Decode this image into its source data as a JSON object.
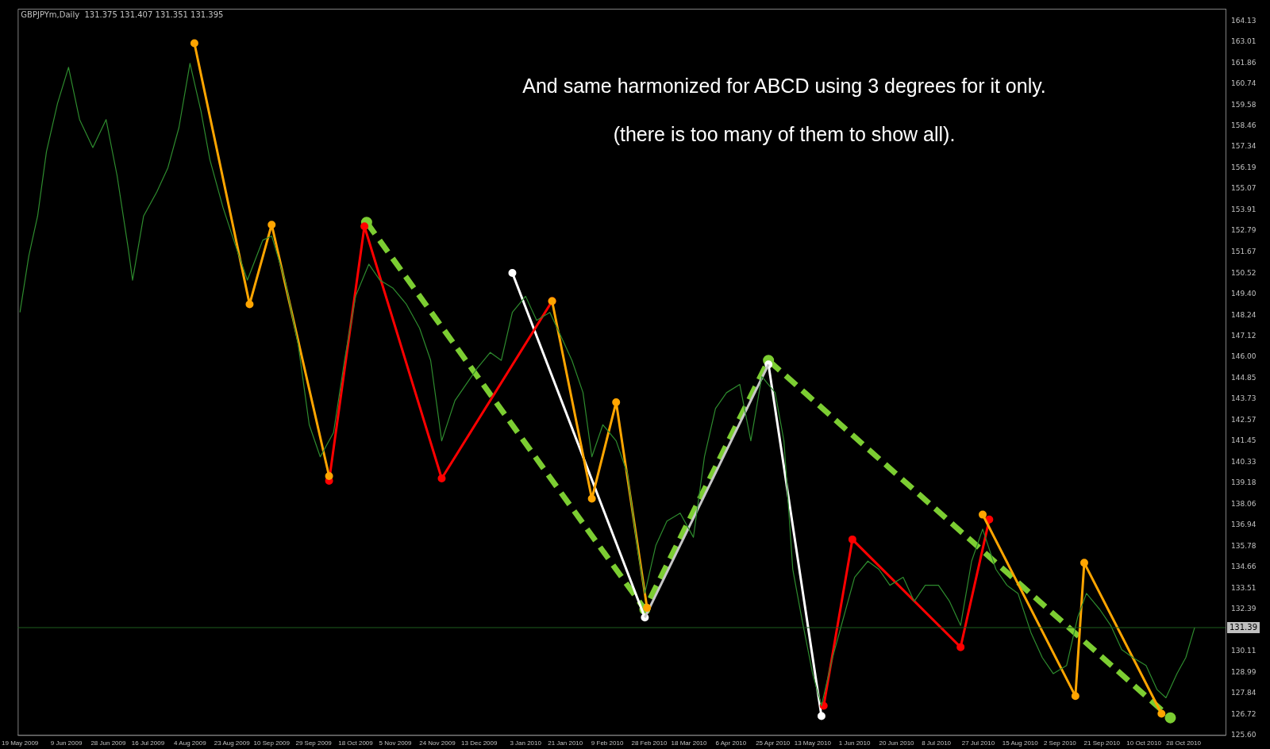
{
  "chart_data": {
    "type": "line",
    "title": "GBPJPYm,Daily  131.375 131.407 131.351 131.395",
    "annotations": [
      "And same harmonized for ABCD using 3 degrees for it only.",
      "(there is too many of them to show all)."
    ],
    "xlim": [
      "2009-05-18",
      "2010-11-16"
    ],
    "xticks": [
      {
        "value": "2009-05-19",
        "label": "19 May 2009"
      },
      {
        "value": "2009-06-09",
        "label": "9 Jun 2009"
      },
      {
        "value": "2009-06-28",
        "label": "28 Jun 2009"
      },
      {
        "value": "2009-07-16",
        "label": "16 Jul 2009"
      },
      {
        "value": "2009-08-04",
        "label": "4 Aug 2009"
      },
      {
        "value": "2009-08-23",
        "label": "23 Aug 2009"
      },
      {
        "value": "2009-09-10",
        "label": "10 Sep 2009"
      },
      {
        "value": "2009-09-29",
        "label": "29 Sep 2009"
      },
      {
        "value": "2009-10-18",
        "label": "18 Oct 2009"
      },
      {
        "value": "2009-11-05",
        "label": "5 Nov 2009"
      },
      {
        "value": "2009-11-24",
        "label": "24 Nov 2009"
      },
      {
        "value": "2009-12-13",
        "label": "13 Dec 2009"
      },
      {
        "value": "2010-01-03",
        "label": "3 Jan 2010"
      },
      {
        "value": "2010-01-21",
        "label": "21 Jan 2010"
      },
      {
        "value": "2010-02-09",
        "label": "9 Feb 2010"
      },
      {
        "value": "2010-02-28",
        "label": "28 Feb 2010"
      },
      {
        "value": "2010-03-18",
        "label": "18 Mar 2010"
      },
      {
        "value": "2010-04-06",
        "label": "6 Apr 2010"
      },
      {
        "value": "2010-04-25",
        "label": "25 Apr 2010"
      },
      {
        "value": "2010-05-13",
        "label": "13 May 2010"
      },
      {
        "value": "2010-06-01",
        "label": "1 Jun 2010"
      },
      {
        "value": "2010-06-20",
        "label": "20 Jun 2010"
      },
      {
        "value": "2010-07-08",
        "label": "8 Jul 2010"
      },
      {
        "value": "2010-07-27",
        "label": "27 Jul 2010"
      },
      {
        "value": "2010-08-15",
        "label": "15 Aug 2010"
      },
      {
        "value": "2010-09-02",
        "label": "2 Sep 2010"
      },
      {
        "value": "2010-09-21",
        "label": "21 Sep 2010"
      },
      {
        "value": "2010-10-10",
        "label": "10 Oct 2010"
      },
      {
        "value": "2010-10-28",
        "label": "28 Oct 2010"
      }
    ],
    "ylim": [
      125.6,
      164.78
    ],
    "yticks": [
      164.13,
      163.01,
      161.86,
      160.74,
      159.58,
      158.46,
      157.34,
      156.19,
      155.07,
      153.91,
      152.79,
      151.67,
      150.52,
      {
        "value": 149.4,
        "label": "149.40"
      },
      148.24,
      147.12,
      {
        "value": 146,
        "label": "146.00"
      },
      144.85,
      143.73,
      142.57,
      141.45,
      140.33,
      139.18,
      138.06,
      136.94,
      135.78,
      134.66,
      133.51,
      132.39,
      130.11,
      128.99,
      127.84,
      126.72,
      {
        "value": 125.6,
        "label": "125.60"
      }
    ],
    "ref_lines": [
      {
        "axis": "y",
        "value": 131.395,
        "label": "131.39",
        "color": "#1f5f1f"
      }
    ],
    "grid": false,
    "legend": false,
    "series": [
      {
        "color": "#2e8b2e",
        "marker": "none",
        "x": [
          "2009-05-19",
          "2009-05-23",
          "2009-05-27",
          "2009-05-31",
          "2009-06-05",
          "2009-06-10",
          "2009-06-15",
          "2009-06-21",
          "2009-06-27",
          "2009-07-02",
          "2009-07-07",
          "2009-07-09",
          "2009-07-14",
          "2009-07-20",
          "2009-07-25",
          "2009-07-30",
          "2009-08-04",
          "2009-08-09",
          "2009-08-13",
          "2009-08-19",
          "2009-08-25",
          "2009-08-30",
          "2009-09-06",
          "2009-09-10",
          "2009-09-16",
          "2009-09-22",
          "2009-09-27",
          "2009-10-02",
          "2009-10-08",
          "2009-10-13",
          "2009-10-18",
          "2009-10-24",
          "2009-10-29",
          "2009-11-04",
          "2009-11-10",
          "2009-11-16",
          "2009-11-21",
          "2009-11-26",
          "2009-12-02",
          "2009-12-07",
          "2009-12-12",
          "2009-12-18",
          "2009-12-23",
          "2009-12-28",
          "2010-01-03",
          "2010-01-08",
          "2010-01-14",
          "2010-01-19",
          "2010-01-24",
          "2010-01-29",
          "2010-02-02",
          "2010-02-07",
          "2010-02-13",
          "2010-02-18",
          "2010-02-23",
          "2010-02-26",
          "2010-03-03",
          "2010-03-08",
          "2010-03-14",
          "2010-03-20",
          "2010-03-25",
          "2010-03-30",
          "2010-04-04",
          "2010-04-10",
          "2010-04-15",
          "2010-04-20",
          "2010-04-26",
          "2010-04-30",
          "2010-05-04",
          "2010-05-08",
          "2010-05-13",
          "2010-05-17",
          "2010-05-22",
          "2010-05-27",
          "2010-06-01",
          "2010-06-07",
          "2010-06-12",
          "2010-06-17",
          "2010-06-23",
          "2010-06-28",
          "2010-07-03",
          "2010-07-09",
          "2010-07-14",
          "2010-07-19",
          "2010-07-24",
          "2010-07-29",
          "2010-08-04",
          "2010-08-09",
          "2010-08-14",
          "2010-08-20",
          "2010-08-25",
          "2010-08-30",
          "2010-09-05",
          "2010-09-10",
          "2010-09-14",
          "2010-09-20",
          "2010-09-25",
          "2010-09-30",
          "2010-10-05",
          "2010-10-11",
          "2010-10-16",
          "2010-10-20",
          "2010-10-25",
          "2010-10-29",
          "2010-11-02"
        ],
        "values": [
          148.4,
          151.44,
          153.6,
          157.07,
          159.67,
          161.62,
          158.8,
          157.29,
          158.8,
          155.77,
          151.87,
          150.14,
          153.6,
          154.9,
          156.2,
          158.37,
          161.83,
          159.24,
          156.64,
          154.04,
          151.87,
          150.14,
          152.3,
          152.52,
          150.14,
          146.67,
          142.34,
          140.61,
          141.91,
          145.81,
          149.27,
          151,
          150.14,
          149.7,
          148.84,
          147.54,
          145.81,
          141.47,
          143.64,
          144.51,
          145.37,
          146.24,
          145.81,
          148.4,
          149.27,
          147.97,
          148.4,
          147.11,
          145.81,
          144.07,
          140.61,
          142.34,
          141.47,
          139.74,
          135.41,
          133.24,
          135.84,
          137.14,
          137.57,
          136.27,
          140.61,
          143.21,
          144.07,
          144.51,
          141.47,
          144.94,
          144.07,
          141.47,
          134.54,
          131.94,
          128.91,
          127.18,
          129.78,
          131.94,
          134.11,
          134.98,
          134.54,
          133.68,
          134.11,
          132.81,
          133.68,
          133.68,
          132.81,
          131.51,
          134.98,
          136.71,
          134.54,
          133.68,
          133.24,
          131.08,
          129.78,
          128.91,
          129.35,
          131.94,
          133.24,
          132.38,
          131.51,
          130.21,
          129.78,
          129.35,
          128.05,
          127.61,
          128.91,
          129.78,
          131.4
        ]
      },
      {
        "color": "#ffa500",
        "marker": "circle",
        "x": [
          "2009-08-06",
          "2009-08-31",
          "2009-09-10",
          "2009-10-06"
        ],
        "values": [
          162.92,
          148.84,
          153.13,
          139.57
        ]
      },
      {
        "color": "#ffa500",
        "marker": "circle",
        "x": [
          "2010-01-15",
          "2010-02-02",
          "2010-02-13",
          "2010-02-27"
        ],
        "values": [
          149.01,
          138.35,
          143.55,
          132.46
        ]
      },
      {
        "color": "#ffa500",
        "marker": "circle",
        "x": [
          "2010-07-29",
          "2010-09-09",
          "2010-09-13",
          "2010-10-18"
        ],
        "values": [
          137.49,
          127.7,
          134.89,
          126.75
        ]
      },
      {
        "color": "#ff0000",
        "marker": "circle",
        "x": [
          "2009-10-06",
          "2009-10-22",
          "2009-11-26",
          "2010-01-15"
        ],
        "values": [
          139.31,
          153.04,
          139.44,
          149.01
        ]
      },
      {
        "color": "#ff0000",
        "marker": "circle",
        "x": [
          "2010-05-18",
          "2010-05-31",
          "2010-07-19",
          "2010-08-01"
        ],
        "values": [
          127.18,
          136.15,
          130.34,
          137.23
        ]
      },
      {
        "color": "#c8c8c8",
        "marker": "none",
        "x": [
          "2010-02-26",
          "2010-04-23"
        ],
        "values": [
          131.94,
          145.59
        ]
      },
      {
        "color": "#ffffff",
        "marker": "circle",
        "x": [
          "2009-12-28",
          "2010-02-26"
        ],
        "values": [
          150.53,
          131.94
        ]
      },
      {
        "color": "#ffffff",
        "marker": "circle",
        "x": [
          "2010-04-23",
          "2010-05-17"
        ],
        "values": [
          145.59,
          126.62
        ]
      },
      {
        "color": "#7ccd32",
        "marker": "circle",
        "line_style": "dashed",
        "x": [
          "2009-10-23",
          "2010-02-26",
          "2010-04-23",
          "2010-10-22"
        ],
        "values": [
          153.26,
          132.38,
          145.81,
          126.53
        ]
      }
    ]
  }
}
